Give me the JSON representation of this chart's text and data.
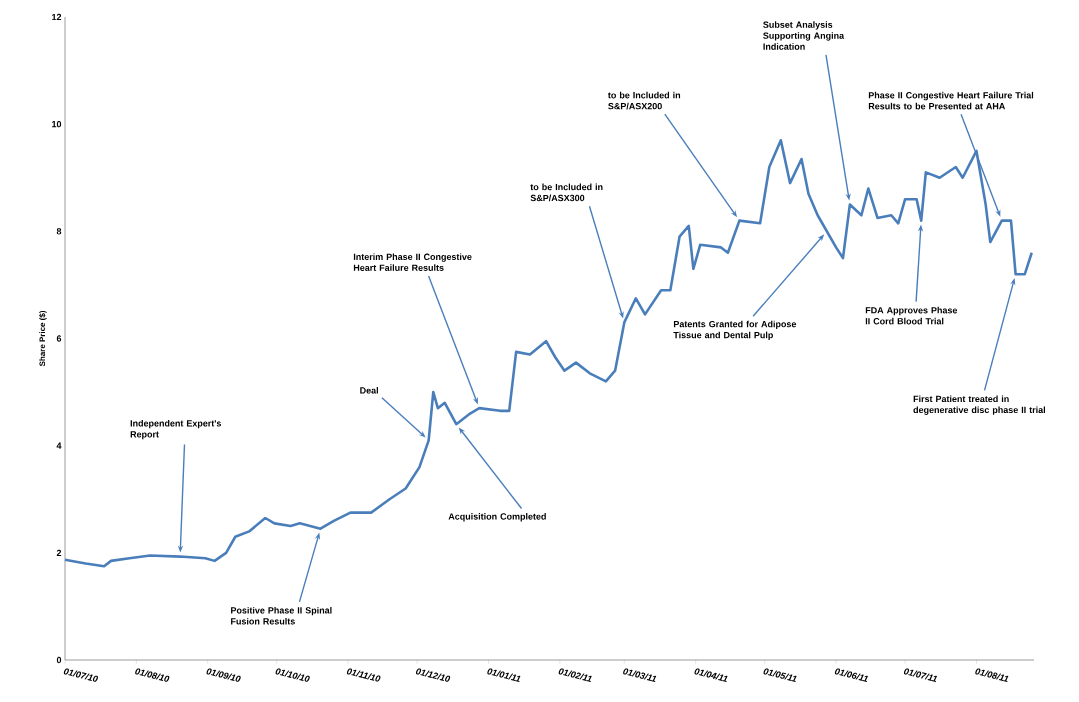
{
  "chart_data": {
    "type": "line",
    "ylabel": "Share Price ($)",
    "x": [
      "2010-07-01",
      "2010-07-10",
      "2010-07-18",
      "2010-07-21",
      "2010-07-29",
      "2010-08-07",
      "2010-08-20",
      "2010-08-31",
      "2010-09-04",
      "2010-09-09",
      "2010-09-13",
      "2010-09-19",
      "2010-09-26",
      "2010-09-30",
      "2010-10-07",
      "2010-10-11",
      "2010-10-20",
      "2010-10-26",
      "2010-11-02",
      "2010-11-11",
      "2010-11-19",
      "2010-11-26",
      "2010-12-02",
      "2010-12-06",
      "2010-12-08",
      "2010-12-10",
      "2010-12-13",
      "2010-12-18",
      "2010-12-24",
      "2010-12-28",
      "2011-01-06",
      "2011-01-10",
      "2011-01-13",
      "2011-01-19",
      "2011-01-26",
      "2011-01-30",
      "2011-02-03",
      "2011-02-08",
      "2011-02-14",
      "2011-02-21",
      "2011-02-25",
      "2011-03-01",
      "2011-03-06",
      "2011-03-10",
      "2011-03-17",
      "2011-03-21",
      "2011-03-25",
      "2011-03-29",
      "2011-03-31",
      "2011-04-03",
      "2011-04-12",
      "2011-04-15",
      "2011-04-20",
      "2011-04-29",
      "2011-05-03",
      "2011-05-08",
      "2011-05-12",
      "2011-05-17",
      "2011-05-20",
      "2011-05-24",
      "2011-05-28",
      "2011-06-01",
      "2011-06-04",
      "2011-06-07",
      "2011-06-12",
      "2011-06-15",
      "2011-06-19",
      "2011-06-25",
      "2011-06-28",
      "2011-07-01",
      "2011-07-06",
      "2011-07-08",
      "2011-07-10",
      "2011-07-16",
      "2011-07-23",
      "2011-07-26",
      "2011-08-01",
      "2011-08-05",
      "2011-08-07",
      "2011-08-12",
      "2011-08-16",
      "2011-08-18",
      "2011-08-22",
      "2011-08-25"
    ],
    "series": [
      {
        "color": "#4a7ebb",
        "values": [
          1.87,
          1.8,
          1.75,
          1.85,
          1.9,
          1.95,
          1.93,
          1.9,
          1.85,
          2.0,
          2.3,
          2.4,
          2.65,
          2.55,
          2.5,
          2.55,
          2.45,
          2.6,
          2.75,
          2.75,
          3.0,
          3.2,
          3.6,
          4.1,
          5.0,
          4.7,
          4.8,
          4.4,
          4.6,
          4.7,
          4.65,
          4.65,
          5.75,
          5.7,
          5.95,
          5.65,
          5.4,
          5.55,
          5.35,
          5.2,
          5.4,
          6.3,
          6.75,
          6.45,
          6.9,
          6.9,
          7.9,
          8.1,
          7.3,
          7.75,
          7.7,
          7.6,
          8.2,
          8.15,
          9.2,
          9.7,
          8.9,
          9.35,
          8.7,
          8.3,
          8.0,
          7.7,
          7.5,
          8.5,
          8.3,
          8.8,
          8.25,
          8.3,
          8.15,
          8.6,
          8.6,
          8.2,
          9.1,
          9.0,
          9.2,
          9.0,
          9.5,
          8.5,
          7.8,
          8.2,
          8.2,
          7.2,
          7.2,
          7.6
        ]
      }
    ],
    "xlim": [
      "2010-07-01",
      "2011-08-26"
    ],
    "xticks": [
      {
        "value": "2010-07-01",
        "label": "01/07/10"
      },
      {
        "value": "2010-08-01",
        "label": "01/08/10"
      },
      {
        "value": "2010-09-01",
        "label": "01/09/10"
      },
      {
        "value": "2010-10-01",
        "label": "01/10/10"
      },
      {
        "value": "2010-11-01",
        "label": "01/11/10"
      },
      {
        "value": "2010-12-01",
        "label": "01/12/10"
      },
      {
        "value": "2011-01-01",
        "label": "01/01/11"
      },
      {
        "value": "2011-02-01",
        "label": "01/02/11"
      },
      {
        "value": "2011-03-01",
        "label": "01/03/11"
      },
      {
        "value": "2011-04-01",
        "label": "01/04/11"
      },
      {
        "value": "2011-05-01",
        "label": "01/05/11"
      },
      {
        "value": "2011-06-01",
        "label": "01/06/11"
      },
      {
        "value": "2011-07-01",
        "label": "01/07/11"
      },
      {
        "value": "2011-08-01",
        "label": "01/08/11"
      }
    ],
    "ylim": [
      0,
      12
    ],
    "yticks": [
      0,
      2,
      4,
      6,
      8,
      10,
      12
    ],
    "grid": false,
    "legend": false,
    "marker": "none",
    "line_style": "solid",
    "annotations": [
      {
        "text": "Independent Expert's Report",
        "x": "2010-08-20",
        "y": 1.93
      },
      {
        "text": "Positive Phase II Spinal Fusion Results",
        "x": "2010-10-20",
        "y": 2.45
      },
      {
        "text": "Deal",
        "x": "2010-12-06",
        "y": 4.1
      },
      {
        "text": "Interim Phase II Congestive Heart Failure Results",
        "x": "2010-12-28",
        "y": 4.7
      },
      {
        "text": "Acquisition Completed",
        "x": "2010-12-18",
        "y": 4.4
      },
      {
        "text": "to be Included in S&P/ASX300",
        "x": "2011-03-01",
        "y": 6.3
      },
      {
        "text": "to be Included in S&P/ASX200",
        "x": "2011-04-20",
        "y": 8.2
      },
      {
        "text": "Patents Granted for Adipose Tissue and Dental Pulp",
        "x": "2011-05-28",
        "y": 8.0
      },
      {
        "text": "Subset Analysis Supporting Angina Indication",
        "x": "2011-06-07",
        "y": 8.5
      },
      {
        "text": "FDA Approves Phase II Cord Blood Trial",
        "x": "2011-07-08",
        "y": 8.2
      },
      {
        "text": "Phase II Congestive Heart Failure Trial Results to be Presented at AHA",
        "x": "2011-08-12",
        "y": 8.2
      },
      {
        "text": "First Patient treated in degenerative disc phase II trial",
        "x": "2011-08-18",
        "y": 7.2
      }
    ]
  }
}
